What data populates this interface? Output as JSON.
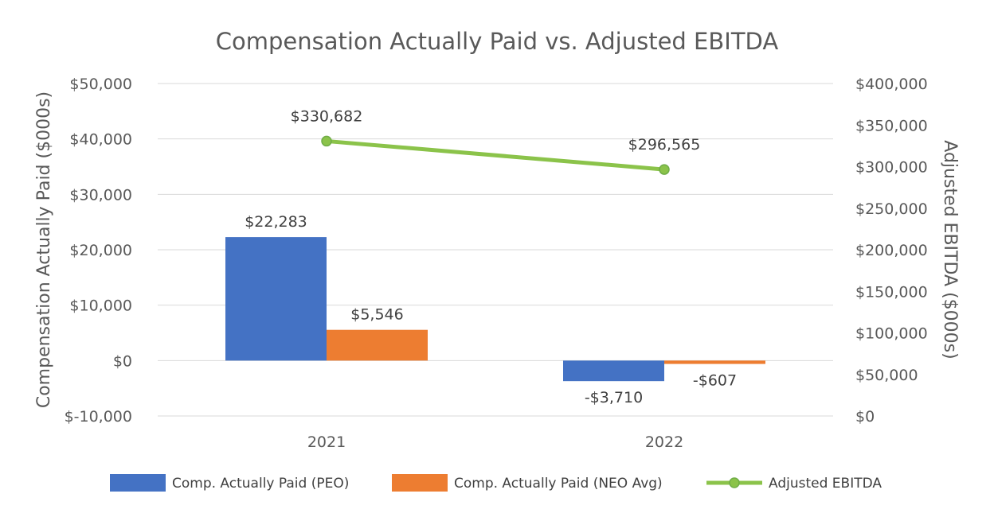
{
  "chart_data": {
    "type": "bar",
    "title": "Compensation Actually Paid vs. Adjusted EBITDA",
    "categories": [
      "2021",
      "2022"
    ],
    "ylabel_left": "Compensation Actually Paid ($000s)",
    "ylabel_right": "Adjusted EBITDA ($000s)",
    "ylim_left": [
      -10000,
      50000
    ],
    "ylim_right": [
      0,
      400000
    ],
    "yticks_left": [
      "$50,000",
      "$40,000",
      "$30,000",
      "$20,000",
      "$10,000",
      "$0",
      "$-10,000"
    ],
    "yticks_right": [
      "$400,000",
      "$350,000",
      "$300,000",
      "$250,000",
      "$200,000",
      "$150,000",
      "$100,000",
      "$50,000",
      "$0"
    ],
    "grid": true,
    "legend_position": "bottom",
    "series": [
      {
        "name": "Comp. Actually Paid (PEO)",
        "type": "bar",
        "axis": "left",
        "color": "#4472C4",
        "values": [
          22283,
          -3710
        ],
        "labels": [
          "$22,283",
          "-$3,710"
        ]
      },
      {
        "name": "Comp. Actually Paid (NEO Avg)",
        "type": "bar",
        "axis": "left",
        "color": "#ED7D31",
        "values": [
          5546,
          -607
        ],
        "labels": [
          "$5,546",
          "-$607"
        ]
      },
      {
        "name": "Adjusted EBITDA",
        "type": "line",
        "axis": "right",
        "color": "#8BC34A",
        "values": [
          330682,
          296565
        ],
        "labels": [
          "$330,682",
          "$296,565"
        ]
      }
    ]
  }
}
